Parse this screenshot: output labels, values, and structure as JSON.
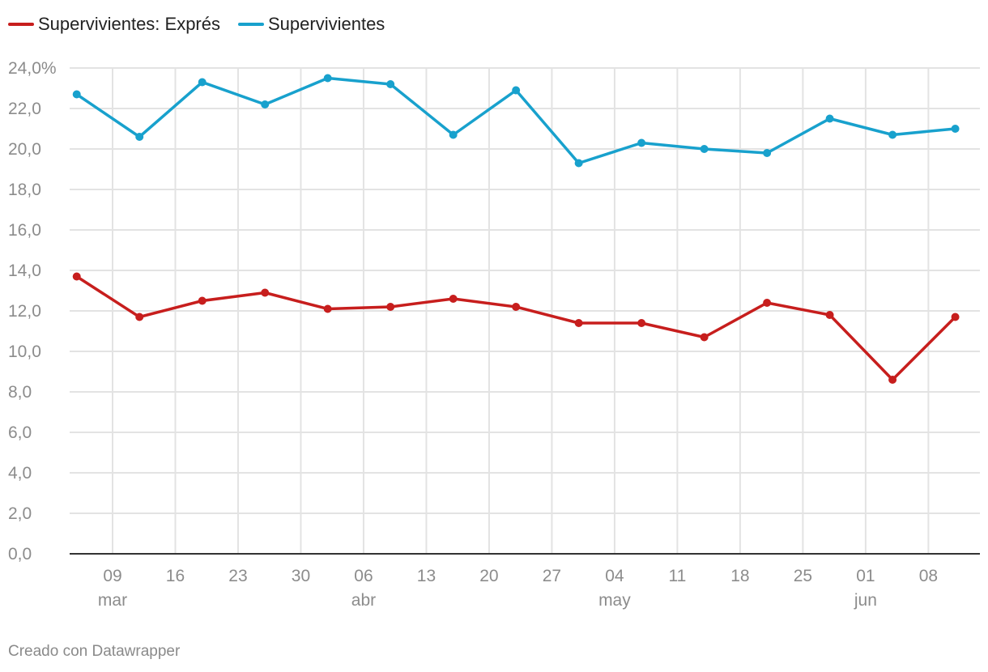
{
  "chart_data": {
    "type": "line",
    "title": "",
    "xlabel": "",
    "ylabel": "",
    "ylim": [
      0,
      24
    ],
    "y_ticks": [
      0,
      2,
      4,
      6,
      8,
      10,
      12,
      14,
      16,
      18,
      20,
      22,
      24
    ],
    "y_tick_labels": [
      "0,0",
      "2,0",
      "4,0",
      "6,0",
      "8,0",
      "10,0",
      "12,0",
      "14,0",
      "16,0",
      "18,0",
      "20,0",
      "22,0",
      "24,0%"
    ],
    "x_ticks": [
      {
        "day": "09",
        "month": "mar",
        "date": "03-09"
      },
      {
        "day": "16",
        "month": "",
        "date": "03-16"
      },
      {
        "day": "23",
        "month": "",
        "date": "03-23"
      },
      {
        "day": "30",
        "month": "",
        "date": "03-30"
      },
      {
        "day": "06",
        "month": "abr",
        "date": "04-06"
      },
      {
        "day": "13",
        "month": "",
        "date": "04-13"
      },
      {
        "day": "20",
        "month": "",
        "date": "04-20"
      },
      {
        "day": "27",
        "month": "",
        "date": "04-27"
      },
      {
        "day": "04",
        "month": "may",
        "date": "05-04"
      },
      {
        "day": "11",
        "month": "",
        "date": "05-11"
      },
      {
        "day": "18",
        "month": "",
        "date": "05-18"
      },
      {
        "day": "25",
        "month": "",
        "date": "05-25"
      },
      {
        "day": "01",
        "month": "jun",
        "date": "06-01"
      },
      {
        "day": "08",
        "month": "",
        "date": "06-08"
      }
    ],
    "dates": [
      "03-05",
      "03-12",
      "03-19",
      "03-26",
      "04-02",
      "04-09",
      "04-16",
      "04-23",
      "04-30",
      "05-07",
      "05-14",
      "05-21",
      "05-28",
      "06-04",
      "06-11"
    ],
    "series": [
      {
        "name": "Supervivientes: Exprés",
        "color": "#c71e1d",
        "values": [
          13.7,
          11.7,
          12.5,
          12.9,
          12.1,
          12.2,
          12.6,
          12.2,
          11.4,
          11.4,
          10.7,
          12.4,
          11.8,
          8.6,
          11.7
        ]
      },
      {
        "name": "Supervivientes",
        "color": "#18a1cd",
        "values": [
          22.7,
          20.6,
          23.3,
          22.2,
          23.5,
          23.2,
          20.7,
          22.9,
          19.3,
          20.3,
          20.0,
          19.8,
          21.5,
          20.7,
          21.0
        ]
      }
    ]
  },
  "footer": {
    "credit": "Creado con Datawrapper"
  }
}
